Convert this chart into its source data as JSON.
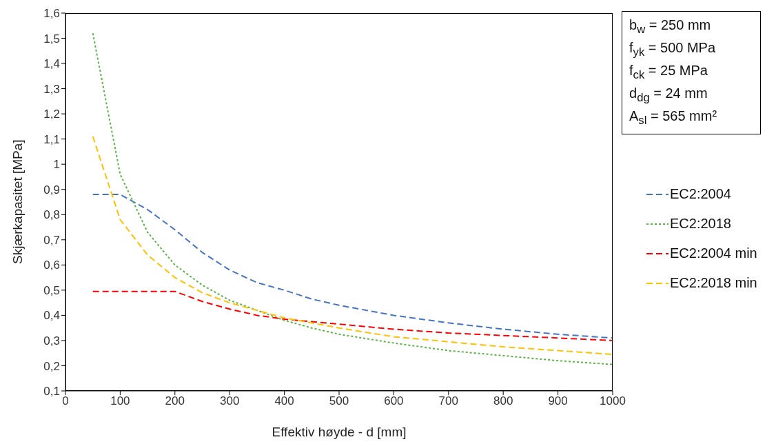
{
  "chart_data": {
    "type": "line",
    "xlabel": "Effektiv høyde - d [mm]",
    "ylabel": "Skjærkapasitet [MPa]",
    "x": [
      50,
      100,
      150,
      200,
      250,
      300,
      350,
      400,
      450,
      500,
      600,
      700,
      800,
      900,
      1000
    ],
    "series": [
      {
        "name": "EC2:2004",
        "color": "#4472c4",
        "line_style": "dashed",
        "values": [
          0.88,
          0.88,
          0.82,
          0.74,
          0.65,
          0.58,
          0.53,
          0.5,
          0.465,
          0.44,
          0.4,
          0.37,
          0.345,
          0.325,
          0.31
        ]
      },
      {
        "name": "EC2:2018",
        "color": "#5ab344",
        "line_style": "dotted",
        "values": [
          1.52,
          0.96,
          0.73,
          0.6,
          0.52,
          0.46,
          0.42,
          0.38,
          0.35,
          0.325,
          0.29,
          0.26,
          0.24,
          0.22,
          0.205
        ]
      },
      {
        "name": "EC2:2004 min",
        "color": "#ff0000",
        "line_style": "dashed",
        "values": [
          0.495,
          0.495,
          0.495,
          0.495,
          0.455,
          0.425,
          0.4,
          0.385,
          0.375,
          0.365,
          0.345,
          0.33,
          0.32,
          0.31,
          0.3
        ]
      },
      {
        "name": "EC2:2018 min",
        "color": "#ffc000",
        "line_style": "dashed",
        "values": [
          1.11,
          0.78,
          0.64,
          0.55,
          0.49,
          0.45,
          0.42,
          0.39,
          0.37,
          0.35,
          0.315,
          0.295,
          0.275,
          0.26,
          0.245
        ]
      }
    ],
    "xlim": [
      0,
      1000
    ],
    "xticks": [
      0,
      100,
      200,
      300,
      400,
      500,
      600,
      700,
      800,
      900,
      1000
    ],
    "ylim": [
      0.1,
      1.6
    ],
    "yticks": [
      {
        "value": 0.1,
        "label": "0,1"
      },
      {
        "value": 0.2,
        "label": "0,2"
      },
      {
        "value": 0.3,
        "label": "0,3"
      },
      {
        "value": 0.4,
        "label": "0,4"
      },
      {
        "value": 0.5,
        "label": "0,5"
      },
      {
        "value": 0.6,
        "label": "0,6"
      },
      {
        "value": 0.7,
        "label": "0,7"
      },
      {
        "value": 0.8,
        "label": "0,8"
      },
      {
        "value": 0.9,
        "label": "0,9"
      },
      {
        "value": 1,
        "label": "1"
      },
      {
        "value": 1.1,
        "label": "1,1"
      },
      {
        "value": 1.2,
        "label": "1,2"
      },
      {
        "value": 1.3,
        "label": "1,3"
      },
      {
        "value": 1.4,
        "label": "1,4"
      },
      {
        "value": 1.5,
        "label": "1,5"
      },
      {
        "value": 1.6,
        "label": "1,6"
      }
    ],
    "annotations": [
      "b$_{w}$ = 250 mm",
      "f$_{yk}$ = 500 MPa",
      "f$_{ck}$ = 25 MPa",
      "d$_{dg}$ = 24 mm",
      "A$_{sl}$ = 565 mm²"
    ],
    "grid": false,
    "legend": "right",
    "marker": "none"
  }
}
